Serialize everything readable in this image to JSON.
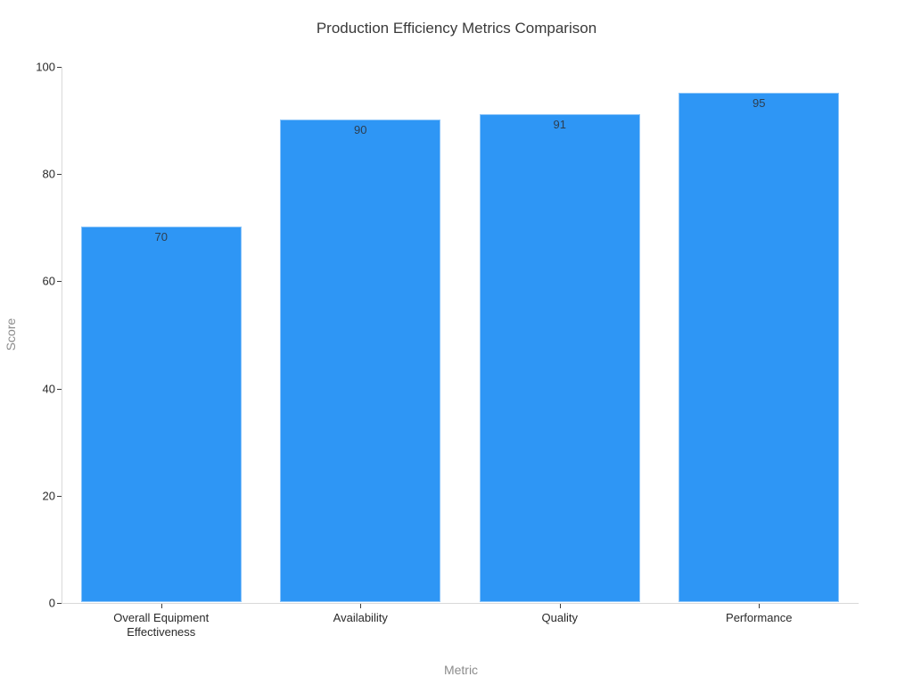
{
  "chart_data": {
    "type": "bar",
    "title": "Production Efficiency Metrics Comparison",
    "xlabel": "Metric",
    "ylabel": "Score",
    "categories": [
      "Overall Equipment Effectiveness",
      "Availability",
      "Quality",
      "Performance"
    ],
    "values": [
      70,
      90,
      91,
      95
    ],
    "value_labels": [
      "70",
      "90",
      "91",
      "95"
    ],
    "ylim": [
      0,
      100
    ],
    "yticks": [
      0,
      20,
      40,
      60,
      80,
      100
    ],
    "grid": false,
    "legend_position": "none",
    "colors": {
      "bar_fill": "#2E96F5",
      "title_text": "#3a3a3a",
      "tick_label": "#2a2a2a",
      "axis_title": "#8c8c8c",
      "axis_line": "#d9d9d9",
      "tick_mark": "#3d3d3d",
      "value_label": "#2d3e50",
      "background": "#ffffff"
    }
  }
}
